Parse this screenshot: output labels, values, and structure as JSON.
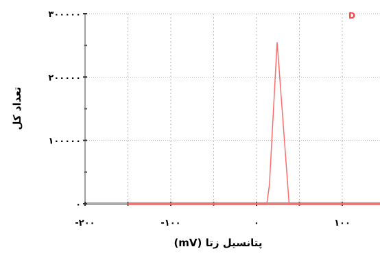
{
  "chart_data": {
    "type": "line",
    "title": "",
    "xlabel": "پتانسیل زتا (mV)",
    "ylabel": "تعداد کل",
    "xlim": [
      -200,
      150
    ],
    "ylim": [
      0,
      300000
    ],
    "grid": true,
    "legend_position": "top-right",
    "x_ticks": [
      {
        "value": -200,
        "label": "-۲۰۰"
      },
      {
        "value": -100,
        "label": "-۱۰۰"
      },
      {
        "value": 0,
        "label": "۰"
      },
      {
        "value": 100,
        "label": "۱۰۰"
      }
    ],
    "y_ticks": [
      {
        "value": 0,
        "label": "۰"
      },
      {
        "value": 100000,
        "label": "۱۰۰۰۰۰"
      },
      {
        "value": 200000,
        "label": "۲۰۰۰۰۰"
      },
      {
        "value": 300000,
        "label": "۳۰۰۰۰۰"
      }
    ],
    "series": [
      {
        "name": "D",
        "color": "#ff6b6b",
        "x": [
          -150,
          12,
          15,
          24,
          27,
          38,
          150
        ],
        "y": [
          0,
          0,
          30000,
          255000,
          200000,
          0,
          0
        ]
      }
    ]
  }
}
